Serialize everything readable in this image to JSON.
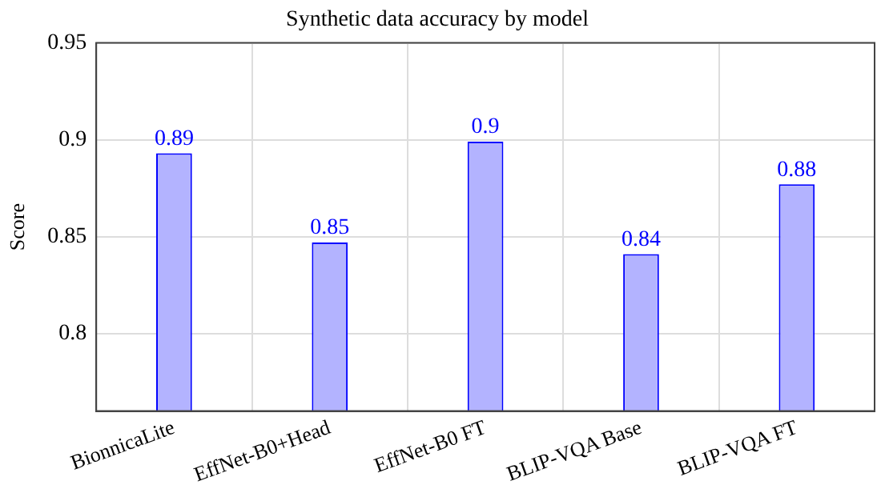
{
  "chart_data": {
    "type": "bar",
    "title": "Synthetic data accuracy by model",
    "ylabel": "Score",
    "categories": [
      "BionnicaLite",
      "EffNet-B0+Head",
      "EffNet-B0 FT",
      "BLIP-VQA Base",
      "BLIP-VQA FT"
    ],
    "values": [
      0.893,
      0.847,
      0.899,
      0.841,
      0.877
    ],
    "value_labels": [
      "0.89",
      "0.85",
      "0.9",
      "0.84",
      "0.88"
    ],
    "color": "#b3b3ff",
    "ylim": [
      0.76,
      0.95
    ],
    "yticks": [
      0.8,
      0.85,
      0.9,
      0.95
    ],
    "grid": true,
    "legend": false
  }
}
